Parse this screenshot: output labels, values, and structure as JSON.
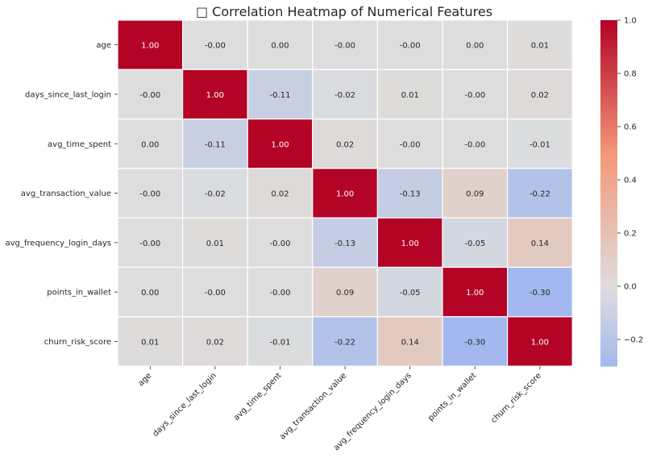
{
  "chart_data": {
    "type": "heatmap",
    "title": "□ Correlation Heatmap of Numerical Features",
    "variables": [
      "age",
      "days_since_last_login",
      "avg_time_spent",
      "avg_transaction_value",
      "avg_frequency_login_days",
      "points_in_wallet",
      "churn_risk_score"
    ],
    "matrix": [
      [
        1.0,
        -0.0,
        0.0,
        -0.0,
        -0.0,
        0.0,
        0.01
      ],
      [
        -0.0,
        1.0,
        -0.11,
        -0.02,
        0.01,
        -0.0,
        0.02
      ],
      [
        0.0,
        -0.11,
        1.0,
        0.02,
        -0.0,
        -0.0,
        -0.01
      ],
      [
        -0.0,
        -0.02,
        0.02,
        1.0,
        -0.13,
        0.09,
        -0.22
      ],
      [
        -0.0,
        0.01,
        -0.0,
        -0.13,
        1.0,
        -0.05,
        0.14
      ],
      [
        0.0,
        -0.0,
        -0.0,
        0.09,
        -0.05,
        1.0,
        -0.3
      ],
      [
        0.01,
        0.02,
        -0.01,
        -0.22,
        0.14,
        -0.3,
        1.0
      ]
    ],
    "cell_labels": [
      [
        "1.00",
        "-0.00",
        "0.00",
        "-0.00",
        "-0.00",
        "0.00",
        "0.01"
      ],
      [
        "-0.00",
        "1.00",
        "-0.11",
        "-0.02",
        "0.01",
        "-0.00",
        "0.02"
      ],
      [
        "0.00",
        "-0.11",
        "1.00",
        "0.02",
        "-0.00",
        "-0.00",
        "-0.01"
      ],
      [
        "-0.00",
        "-0.02",
        "0.02",
        "1.00",
        "-0.13",
        "0.09",
        "-0.22"
      ],
      [
        "-0.00",
        "0.01",
        "-0.00",
        "-0.13",
        "1.00",
        "-0.05",
        "0.14"
      ],
      [
        "0.00",
        "-0.00",
        "-0.00",
        "0.09",
        "-0.05",
        "1.00",
        "-0.30"
      ],
      [
        "0.01",
        "0.02",
        "-0.01",
        "-0.22",
        "0.14",
        "-0.30",
        "1.00"
      ]
    ],
    "colormap": "coolwarm",
    "colorbar": {
      "vmin": -0.3,
      "vmax": 1.0,
      "ticks": [
        -0.2,
        0.0,
        0.2,
        0.4,
        0.6,
        0.8,
        1.0
      ],
      "tick_labels": [
        "−0.2",
        "0.0",
        "0.2",
        "0.4",
        "0.6",
        "0.8",
        "1.0"
      ]
    },
    "colors": {
      "low": "#3b4cc0",
      "mid": "#dddddd",
      "high": "#b40426",
      "cell_border": "#ffffff",
      "text": "#262626"
    }
  }
}
